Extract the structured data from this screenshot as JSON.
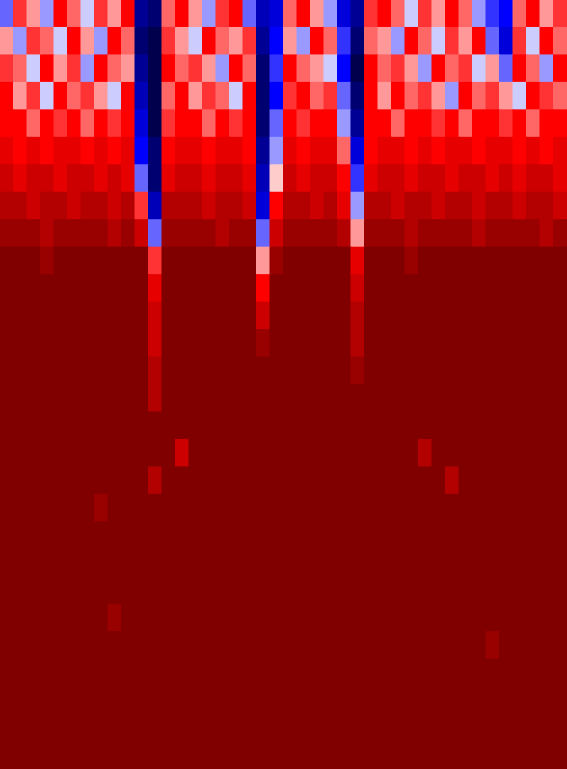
{
  "chart_data": {
    "type": "heatmap",
    "tick_labels": false,
    "color_range": [
      -1,
      1
    ],
    "cells": [
      [
        -0.3,
        0.4,
        0.2,
        -0.2,
        0.5,
        0.3,
        -0.1,
        0.4,
        0.2,
        0.5,
        -0.8,
        -0.9,
        0.3,
        0.5,
        0.2,
        -0.2,
        0.4,
        0.5,
        -0.3,
        -0.7,
        -0.6,
        0.3,
        0.5,
        0.2,
        -0.2,
        -0.6,
        -0.8,
        0.4,
        0.5,
        0.3,
        -0.1,
        0.4,
        0.2,
        0.5,
        0.3,
        -0.2,
        -0.4,
        -0.5,
        0.3,
        0.5,
        0.2,
        0.4
      ],
      [
        0.2,
        -0.2,
        0.4,
        0.3,
        -0.1,
        0.5,
        0.2,
        -0.2,
        0.5,
        0.3,
        -0.9,
        -1,
        0.4,
        0.2,
        -0.1,
        0.5,
        0.3,
        0.2,
        0.4,
        -0.8,
        -0.5,
        0.2,
        -0.2,
        0.5,
        0.3,
        -0.4,
        -0.9,
        0.3,
        0.2,
        -0.2,
        0.5,
        0.3,
        -0.1,
        0.4,
        0.2,
        0.5,
        -0.3,
        -0.6,
        0.4,
        -0.1,
        0.5,
        0.3
      ],
      [
        0.4,
        0.3,
        -0.1,
        0.5,
        0.2,
        0.4,
        -0.2,
        0.5,
        0.3,
        0.2,
        -0.8,
        -1,
        0.5,
        0.3,
        0.4,
        0.2,
        -0.2,
        0.5,
        0.3,
        -0.9,
        -0.4,
        0.5,
        0.3,
        0.2,
        -0.1,
        -0.5,
        -1,
        0.5,
        0.3,
        0.4,
        0.2,
        -0.2,
        0.5,
        0.3,
        0.4,
        -0.1,
        0.2,
        -0.3,
        0.5,
        0.3,
        -0.2,
        0.5
      ],
      [
        0.5,
        0.2,
        0.4,
        -0.1,
        0.5,
        0.3,
        0.4,
        0.2,
        -0.1,
        0.5,
        -0.7,
        -1,
        0.3,
        0.5,
        0.2,
        0.4,
        0.3,
        -0.1,
        0.5,
        -0.9,
        -0.5,
        0.4,
        0.5,
        0.3,
        0.4,
        -0.3,
        -0.9,
        0.5,
        0.2,
        0.5,
        0.3,
        0.4,
        0.2,
        -0.2,
        0.5,
        0.3,
        0.4,
        0.2,
        -0.1,
        0.5,
        0.4,
        0.3
      ],
      [
        0.5,
        0.5,
        0.3,
        0.5,
        0.4,
        0.5,
        0.3,
        0.5,
        0.4,
        0.5,
        -0.6,
        -1,
        0.4,
        0.5,
        0.5,
        0.3,
        0.5,
        0.4,
        0.5,
        -0.9,
        -0.3,
        0.5,
        0.4,
        0.5,
        0.5,
        -0.2,
        -0.8,
        0.5,
        0.5,
        0.3,
        0.5,
        0.5,
        0.4,
        0.5,
        0.3,
        0.5,
        0.5,
        0.4,
        0.5,
        0.3,
        0.5,
        0.5
      ],
      [
        0.6,
        0.5,
        0.6,
        0.5,
        0.6,
        0.6,
        0.5,
        0.6,
        0.5,
        0.6,
        -0.5,
        -0.9,
        0.5,
        0.6,
        0.6,
        0.5,
        0.6,
        0.6,
        0.5,
        -0.8,
        -0.2,
        0.6,
        0.5,
        0.6,
        0.6,
        0.3,
        -0.6,
        0.5,
        0.6,
        0.6,
        0.5,
        0.6,
        0.5,
        0.6,
        0.6,
        0.5,
        0.6,
        0.6,
        0.5,
        0.6,
        0.5,
        0.6
      ],
      [
        0.7,
        0.6,
        0.7,
        0.7,
        0.6,
        0.7,
        0.7,
        0.6,
        0.7,
        0.6,
        -0.3,
        -0.9,
        0.6,
        0.7,
        0.7,
        0.6,
        0.7,
        0.7,
        0.6,
        -0.7,
        0.1,
        0.7,
        0.6,
        0.7,
        0.7,
        0.5,
        -0.4,
        0.6,
        0.7,
        0.7,
        0.6,
        0.7,
        0.7,
        0.6,
        0.7,
        0.7,
        0.6,
        0.7,
        0.6,
        0.7,
        0.7,
        0.6
      ],
      [
        0.8,
        0.8,
        0.7,
        0.8,
        0.8,
        0.7,
        0.8,
        0.8,
        0.7,
        0.8,
        0.4,
        -0.7,
        0.8,
        0.8,
        0.8,
        0.7,
        0.8,
        0.8,
        0.7,
        -0.6,
        0.5,
        0.8,
        0.8,
        0.7,
        0.8,
        0.6,
        -0.2,
        0.8,
        0.8,
        0.7,
        0.8,
        0.8,
        0.7,
        0.8,
        0.8,
        0.7,
        0.8,
        0.8,
        0.7,
        0.8,
        0.8,
        0.7
      ],
      [
        0.9,
        0.9,
        0.9,
        0.8,
        0.9,
        0.9,
        0.9,
        0.9,
        0.8,
        0.9,
        0.7,
        -0.3,
        0.9,
        0.9,
        0.9,
        0.9,
        0.8,
        0.9,
        0.9,
        -0.3,
        0.7,
        0.9,
        0.9,
        0.9,
        0.9,
        0.8,
        0.2,
        0.9,
        0.9,
        0.9,
        0.8,
        0.9,
        0.9,
        0.9,
        0.9,
        0.8,
        0.9,
        0.9,
        0.9,
        0.9,
        0.8,
        0.9
      ],
      [
        1,
        1,
        1,
        0.9,
        1,
        1,
        1,
        1,
        1,
        1,
        1,
        0.4,
        1,
        1,
        1,
        1,
        1,
        1,
        1,
        0.2,
        0.9,
        1,
        1,
        1,
        1,
        1,
        0.6,
        1,
        1,
        1,
        0.9,
        1,
        1,
        1,
        1,
        1,
        1,
        1,
        1,
        1,
        1,
        1
      ],
      [
        1,
        1,
        1,
        1,
        1,
        1,
        1,
        1,
        1,
        1,
        1,
        0.6,
        1,
        1,
        1,
        1,
        1,
        1,
        1,
        0.5,
        1,
        1,
        1,
        1,
        1,
        1,
        0.7,
        1,
        1,
        1,
        1,
        1,
        1,
        1,
        1,
        1,
        1,
        1,
        1,
        1,
        1,
        1
      ],
      [
        1,
        1,
        1,
        1,
        1,
        1,
        1,
        1,
        1,
        1,
        1,
        0.7,
        1,
        1,
        1,
        1,
        1,
        1,
        1,
        0.7,
        1,
        1,
        1,
        1,
        1,
        1,
        0.8,
        1,
        1,
        1,
        1,
        1,
        1,
        1,
        1,
        1,
        1,
        1,
        1,
        1,
        1,
        1
      ],
      [
        1,
        1,
        1,
        1,
        1,
        1,
        1,
        1,
        1,
        1,
        1,
        0.7,
        1,
        1,
        1,
        1,
        1,
        1,
        1,
        0.9,
        1,
        1,
        1,
        1,
        1,
        1,
        0.8,
        1,
        1,
        1,
        1,
        1,
        1,
        1,
        1,
        1,
        1,
        1,
        1,
        1,
        1,
        1
      ],
      [
        1,
        1,
        1,
        1,
        1,
        1,
        1,
        1,
        1,
        1,
        1,
        0.8,
        1,
        1,
        1,
        1,
        1,
        1,
        1,
        1,
        1,
        1,
        1,
        1,
        1,
        1,
        0.9,
        1,
        1,
        1,
        1,
        1,
        1,
        1,
        1,
        1,
        1,
        1,
        1,
        1,
        1,
        1
      ],
      [
        1,
        1,
        1,
        1,
        1,
        1,
        1,
        1,
        1,
        1,
        1,
        0.8,
        1,
        1,
        1,
        1,
        1,
        1,
        1,
        1,
        1,
        1,
        1,
        1,
        1,
        1,
        1,
        1,
        1,
        1,
        1,
        1,
        1,
        1,
        1,
        1,
        1,
        1,
        1,
        1,
        1,
        1
      ],
      [
        1,
        1,
        1,
        1,
        1,
        1,
        1,
        1,
        1,
        1,
        1,
        1,
        1,
        1,
        1,
        1,
        1,
        1,
        1,
        1,
        1,
        1,
        1,
        1,
        1,
        1,
        1,
        1,
        1,
        1,
        1,
        1,
        1,
        1,
        1,
        1,
        1,
        1,
        1,
        1,
        1,
        1
      ],
      [
        1,
        1,
        1,
        1,
        1,
        1,
        1,
        1,
        1,
        1,
        1,
        1,
        1,
        0.7,
        1,
        1,
        1,
        1,
        1,
        1,
        1,
        1,
        1,
        1,
        1,
        1,
        1,
        1,
        1,
        1,
        1,
        0.8,
        1,
        1,
        1,
        1,
        1,
        1,
        1,
        1,
        1,
        1
      ],
      [
        1,
        1,
        1,
        1,
        1,
        1,
        1,
        1,
        1,
        1,
        1,
        0.8,
        1,
        1,
        1,
        1,
        1,
        1,
        1,
        1,
        1,
        1,
        1,
        1,
        1,
        1,
        1,
        1,
        1,
        1,
        1,
        1,
        1,
        0.8,
        1,
        1,
        1,
        1,
        1,
        1,
        1,
        1
      ],
      [
        1,
        1,
        1,
        1,
        1,
        1,
        1,
        0.9,
        1,
        1,
        1,
        1,
        1,
        1,
        1,
        1,
        1,
        1,
        1,
        1,
        1,
        1,
        1,
        1,
        1,
        1,
        1,
        1,
        1,
        1,
        1,
        1,
        1,
        1,
        1,
        1,
        1,
        1,
        1,
        1,
        1,
        1
      ],
      [
        1,
        1,
        1,
        1,
        1,
        1,
        1,
        1,
        1,
        1,
        1,
        1,
        1,
        1,
        1,
        1,
        1,
        1,
        1,
        1,
        1,
        1,
        1,
        1,
        1,
        1,
        1,
        1,
        1,
        1,
        1,
        1,
        1,
        1,
        1,
        1,
        1,
        1,
        1,
        1,
        1,
        1
      ],
      [
        1,
        1,
        1,
        1,
        1,
        1,
        1,
        1,
        1,
        1,
        1,
        1,
        1,
        1,
        1,
        1,
        1,
        1,
        1,
        1,
        1,
        1,
        1,
        1,
        1,
        1,
        1,
        1,
        1,
        1,
        1,
        1,
        1,
        1,
        1,
        1,
        1,
        1,
        1,
        1,
        1,
        1
      ],
      [
        1,
        1,
        1,
        1,
        1,
        1,
        1,
        1,
        1,
        1,
        1,
        1,
        1,
        1,
        1,
        1,
        1,
        1,
        1,
        1,
        1,
        1,
        1,
        1,
        1,
        1,
        1,
        1,
        1,
        1,
        1,
        1,
        1,
        1,
        1,
        1,
        1,
        1,
        1,
        1,
        1,
        1
      ],
      [
        1,
        1,
        1,
        1,
        1,
        1,
        1,
        1,
        0.9,
        1,
        1,
        1,
        1,
        1,
        1,
        1,
        1,
        1,
        1,
        1,
        1,
        1,
        1,
        1,
        1,
        1,
        1,
        1,
        1,
        1,
        1,
        1,
        1,
        1,
        1,
        1,
        1,
        1,
        1,
        1,
        1,
        1
      ],
      [
        1,
        1,
        1,
        1,
        1,
        1,
        1,
        1,
        1,
        1,
        1,
        1,
        1,
        1,
        1,
        1,
        1,
        1,
        1,
        1,
        1,
        1,
        1,
        1,
        1,
        1,
        1,
        1,
        1,
        1,
        1,
        1,
        1,
        1,
        1,
        1,
        0.9,
        1,
        1,
        1,
        1,
        1
      ],
      [
        1,
        1,
        1,
        1,
        1,
        1,
        1,
        1,
        1,
        1,
        1,
        1,
        1,
        1,
        1,
        1,
        1,
        1,
        1,
        1,
        1,
        1,
        1,
        1,
        1,
        1,
        1,
        1,
        1,
        1,
        1,
        1,
        1,
        1,
        1,
        1,
        1,
        1,
        1,
        1,
        1,
        1
      ],
      [
        1,
        1,
        1,
        1,
        1,
        1,
        1,
        1,
        1,
        1,
        1,
        1,
        1,
        1,
        1,
        1,
        1,
        1,
        1,
        1,
        1,
        1,
        1,
        1,
        1,
        1,
        1,
        1,
        1,
        1,
        1,
        1,
        1,
        1,
        1,
        1,
        1,
        1,
        1,
        1,
        1,
        1
      ],
      [
        1,
        1,
        1,
        1,
        1,
        1,
        1,
        1,
        1,
        1,
        1,
        1,
        1,
        1,
        1,
        1,
        1,
        1,
        1,
        1,
        1,
        1,
        1,
        1,
        1,
        1,
        1,
        1,
        1,
        1,
        1,
        1,
        1,
        1,
        1,
        1,
        1,
        1,
        1,
        1,
        1,
        1
      ],
      [
        1,
        1,
        1,
        1,
        1,
        1,
        1,
        1,
        1,
        1,
        1,
        1,
        1,
        1,
        1,
        1,
        1,
        1,
        1,
        1,
        1,
        1,
        1,
        1,
        1,
        1,
        1,
        1,
        1,
        1,
        1,
        1,
        1,
        1,
        1,
        1,
        1,
        1,
        1,
        1,
        1,
        1
      ]
    ]
  }
}
